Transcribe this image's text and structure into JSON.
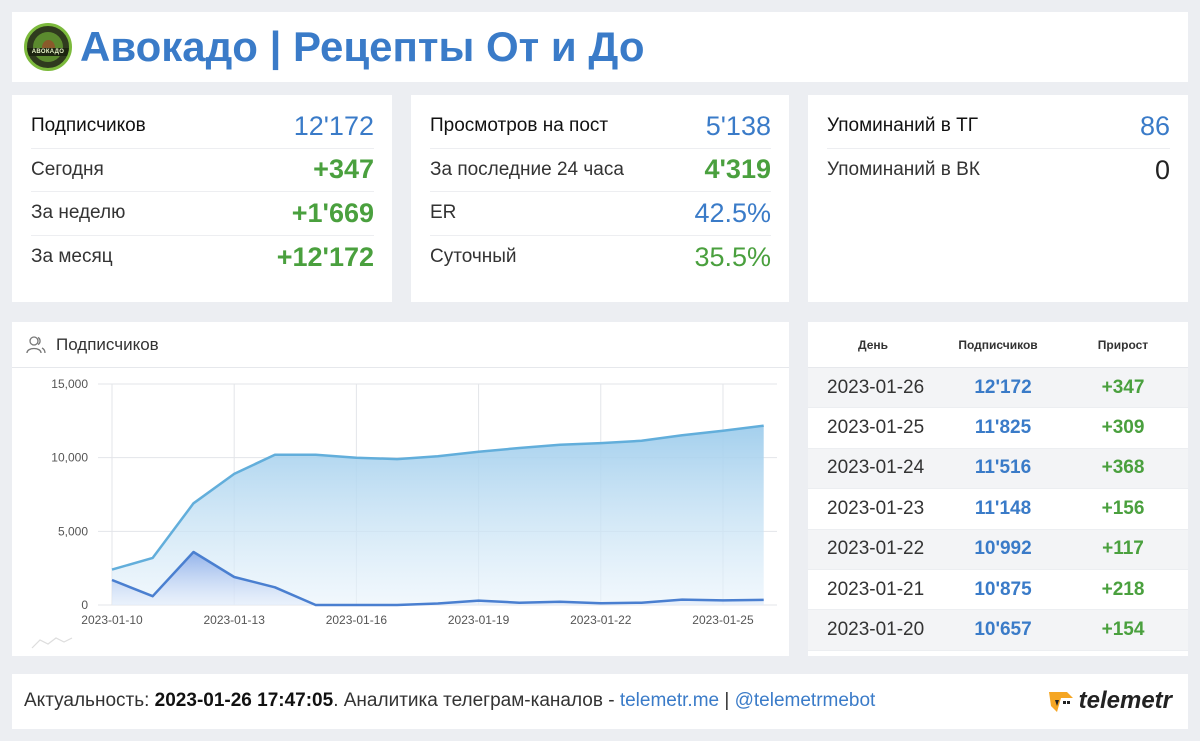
{
  "header": {
    "title": "Авокадо | Рецепты От и До",
    "logo_text": "АВОКАДО"
  },
  "subscribers_card": {
    "rows": [
      {
        "label": "Подписчиков",
        "value": "12'172"
      },
      {
        "label": "Сегодня",
        "value": "+347"
      },
      {
        "label": "За неделю",
        "value": "+1'669"
      },
      {
        "label": "За месяц",
        "value": "+12'172"
      }
    ]
  },
  "views_card": {
    "rows": [
      {
        "label": "Просмотров на пост",
        "value": "5'138"
      },
      {
        "label": "За последние 24 часа",
        "value": "4'319"
      },
      {
        "label": "ER",
        "value": "42.5%"
      },
      {
        "label": "Суточный",
        "value": "35.5%"
      }
    ]
  },
  "mentions_card": {
    "rows": [
      {
        "label": "Упоминаний в ТГ",
        "value": "86"
      },
      {
        "label": "Упоминаний в ВК",
        "value": "0"
      }
    ]
  },
  "chart_panel": {
    "title": "Подписчиков",
    "icon": "users-icon"
  },
  "chart_data": {
    "type": "area",
    "title": "Подписчиков",
    "xlabel": "",
    "ylabel": "",
    "ylim": [
      0,
      15000
    ],
    "yticks": [
      0,
      5000,
      10000,
      15000
    ],
    "ytick_labels": [
      "0",
      "5,000",
      "10,000",
      "15,000"
    ],
    "xtick_labels": [
      "2023-01-10",
      "2023-01-13",
      "2023-01-16",
      "2023-01-19",
      "2023-01-22",
      "2023-01-25"
    ],
    "x": [
      "2023-01-10",
      "2023-01-11",
      "2023-01-12",
      "2023-01-13",
      "2023-01-14",
      "2023-01-15",
      "2023-01-16",
      "2023-01-17",
      "2023-01-18",
      "2023-01-19",
      "2023-01-20",
      "2023-01-21",
      "2023-01-22",
      "2023-01-23",
      "2023-01-24",
      "2023-01-25",
      "2023-01-26"
    ],
    "series": [
      {
        "values": [
          2400,
          3200,
          6900,
          8900,
          10200,
          10200,
          10000,
          9900,
          10100,
          10400,
          10657,
          10875,
          10992,
          11148,
          11516,
          11825,
          12172
        ],
        "color": "#62aedb",
        "fill": "#cfe6f5"
      },
      {
        "values": [
          1700,
          600,
          3600,
          1900,
          1200,
          -100,
          -200,
          -150,
          100,
          300,
          154,
          218,
          117,
          156,
          368,
          309,
          347
        ],
        "color": "#4a7fd0",
        "fill": "#b9cdf0"
      }
    ],
    "grid": true
  },
  "table": {
    "headers": [
      "День",
      "Подписчиков",
      "Прирост"
    ],
    "rows": [
      {
        "day": "2023-01-26",
        "subs": "12'172",
        "growth": "+347"
      },
      {
        "day": "2023-01-25",
        "subs": "11'825",
        "growth": "+309"
      },
      {
        "day": "2023-01-24",
        "subs": "11'516",
        "growth": "+368"
      },
      {
        "day": "2023-01-23",
        "subs": "11'148",
        "growth": "+156"
      },
      {
        "day": "2023-01-22",
        "subs": "10'992",
        "growth": "+117"
      },
      {
        "day": "2023-01-21",
        "subs": "10'875",
        "growth": "+218"
      },
      {
        "day": "2023-01-20",
        "subs": "10'657",
        "growth": "+154"
      }
    ]
  },
  "footer": {
    "prefix": "Актуальность: ",
    "timestamp": "2023-01-26 17:47:05",
    "middle": ". Аналитика телеграм-каналов - ",
    "link1": "telemetr.me",
    "sep": " | ",
    "link2": "@telemetrmebot",
    "brand": "telemetr",
    "brand_icon": "telemetr-logo-icon"
  },
  "colors": {
    "accent_blue": "#3a7bc8",
    "accent_green": "#4aa03e",
    "brand_orange": "#f5a623"
  }
}
